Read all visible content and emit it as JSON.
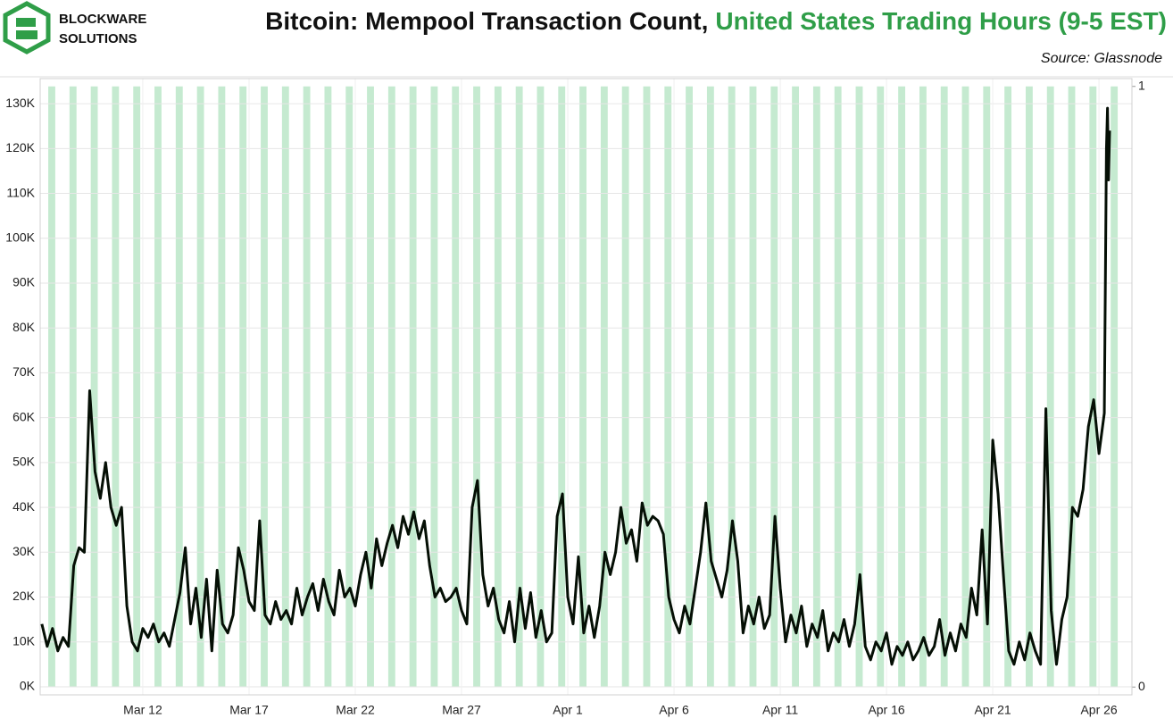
{
  "chart_data": {
    "type": "line",
    "logo_text": [
      "BLOCKWARE",
      "SOLUTIONS"
    ],
    "title": "Bitcoin: Mempool Transaction Count,",
    "title_highlight": "United States Trading Hours (9-5 EST)",
    "source": "Source: Glassnode",
    "xlim": [
      7.17,
      58.55
    ],
    "xticks": [
      {
        "value": 12,
        "label": "Mar 12"
      },
      {
        "value": 17,
        "label": "Mar 17"
      },
      {
        "value": 22,
        "label": "Mar 22"
      },
      {
        "value": 27,
        "label": "Mar 27"
      },
      {
        "value": 32,
        "label": "Apr 1"
      },
      {
        "value": 37,
        "label": "Apr 6"
      },
      {
        "value": 42,
        "label": "Apr 11"
      },
      {
        "value": 47,
        "label": "Apr 16"
      },
      {
        "value": 52,
        "label": "Apr 21"
      },
      {
        "value": 57,
        "label": "Apr 26"
      }
    ],
    "ylim": [
      -1800,
      135600
    ],
    "yticks": [
      {
        "value": 0,
        "label": "0K"
      },
      {
        "value": 10000,
        "label": "10K"
      },
      {
        "value": 20000,
        "label": "20K"
      },
      {
        "value": 30000,
        "label": "30K"
      },
      {
        "value": 40000,
        "label": "40K"
      },
      {
        "value": 50000,
        "label": "50K"
      },
      {
        "value": 60000,
        "label": "60K"
      },
      {
        "value": 70000,
        "label": "70K"
      },
      {
        "value": 80000,
        "label": "80K"
      },
      {
        "value": 90000,
        "label": "90K"
      },
      {
        "value": 100000,
        "label": "100K"
      },
      {
        "value": 110000,
        "label": "110K"
      },
      {
        "value": 120000,
        "label": "120K"
      },
      {
        "value": 130000,
        "label": "130K"
      }
    ],
    "y2lim": [
      -0.013,
      1.013
    ],
    "y2ticks": [
      0,
      1
    ],
    "grid": true,
    "bands": {
      "axis": "y2",
      "color": "#c5ead0",
      "starts": [
        7.55,
        8.55,
        9.55,
        10.55,
        11.55,
        12.55,
        13.55,
        14.55,
        15.55,
        16.55,
        17.55,
        18.55,
        19.55,
        20.55,
        21.55,
        22.55,
        23.55,
        24.55,
        25.55,
        26.55,
        27.55,
        28.55,
        29.55,
        30.55,
        31.55,
        32.55,
        33.55,
        34.55,
        35.55,
        36.55,
        37.55,
        38.55,
        39.55,
        40.55,
        41.55,
        42.55,
        43.55,
        44.55,
        45.55,
        46.55,
        47.55,
        48.55,
        49.55,
        50.55,
        51.55,
        52.55,
        53.55,
        54.55,
        55.55,
        56.55,
        57.55
      ],
      "ends": [
        7.88,
        8.88,
        9.88,
        10.88,
        11.88,
        12.88,
        13.88,
        14.88,
        15.88,
        16.88,
        17.88,
        18.88,
        19.88,
        20.88,
        21.88,
        22.88,
        23.88,
        24.88,
        25.88,
        26.88,
        27.88,
        28.88,
        29.88,
        30.88,
        31.88,
        32.88,
        33.88,
        34.88,
        35.88,
        36.88,
        37.88,
        38.88,
        39.88,
        40.88,
        41.88,
        42.88,
        43.88,
        44.88,
        45.88,
        46.88,
        47.88,
        48.88,
        49.88,
        50.88,
        51.88,
        52.88,
        53.88,
        54.88,
        55.88,
        56.88,
        57.88
      ],
      "values": [
        1,
        1,
        1,
        1,
        1,
        1,
        1,
        1,
        1,
        1,
        1,
        1,
        1,
        1,
        1,
        1,
        1,
        1,
        1,
        1,
        1,
        1,
        1,
        1,
        1,
        1,
        1,
        1,
        1,
        1,
        1,
        1,
        1,
        1,
        1,
        1,
        1,
        1,
        1,
        1,
        1,
        1,
        1,
        1,
        1,
        1,
        1,
        1,
        1,
        1,
        1
      ]
    },
    "x": [
      7.25,
      7.5,
      7.75,
      8,
      8.25,
      8.5,
      8.75,
      9,
      9.25,
      9.5,
      9.75,
      10,
      10.25,
      10.5,
      10.75,
      11,
      11.25,
      11.5,
      11.75,
      12,
      12.25,
      12.5,
      12.75,
      13,
      13.25,
      13.5,
      13.75,
      14,
      14.25,
      14.5,
      14.75,
      15,
      15.25,
      15.5,
      15.75,
      16,
      16.25,
      16.5,
      16.75,
      17,
      17.25,
      17.5,
      17.75,
      18,
      18.25,
      18.5,
      18.75,
      19,
      19.25,
      19.5,
      19.75,
      20,
      20.25,
      20.5,
      20.75,
      21,
      21.25,
      21.5,
      21.75,
      22,
      22.25,
      22.5,
      22.75,
      23,
      23.25,
      23.5,
      23.75,
      24,
      24.25,
      24.5,
      24.75,
      25,
      25.25,
      25.5,
      25.75,
      26,
      26.25,
      26.5,
      26.75,
      27,
      27.25,
      27.5,
      27.75,
      28,
      28.25,
      28.5,
      28.75,
      29,
      29.25,
      29.5,
      29.75,
      30,
      30.25,
      30.5,
      30.75,
      31,
      31.25,
      31.5,
      31.75,
      32,
      32.25,
      32.5,
      32.75,
      33,
      33.25,
      33.5,
      33.75,
      34,
      34.25,
      34.5,
      34.75,
      35,
      35.25,
      35.5,
      35.75,
      36,
      36.25,
      36.5,
      36.75,
      37,
      37.25,
      37.5,
      37.75,
      38,
      38.25,
      38.5,
      38.75,
      39,
      39.25,
      39.5,
      39.75,
      40,
      40.25,
      40.5,
      40.75,
      41,
      41.25,
      41.5,
      41.75,
      42,
      42.25,
      42.5,
      42.75,
      43,
      43.25,
      43.5,
      43.75,
      44,
      44.25,
      44.5,
      44.75,
      45,
      45.25,
      45.5,
      45.75,
      46,
      46.25,
      46.5,
      46.75,
      47,
      47.25,
      47.5,
      47.75,
      48,
      48.25,
      48.5,
      48.75,
      49,
      49.25,
      49.5,
      49.75,
      50,
      50.25,
      50.5,
      50.75,
      51,
      51.25,
      51.5,
      51.75,
      52,
      52.25,
      52.5,
      52.75,
      53,
      53.25,
      53.5,
      53.75,
      54,
      54.25,
      54.5,
      54.75,
      55,
      55.25,
      55.5,
      55.75,
      56,
      56.25,
      56.5,
      56.75,
      57,
      57.25,
      57.35,
      57.4,
      57.45,
      57.5
    ],
    "series": [
      {
        "color": "#050f05",
        "values": [
          14000,
          9000,
          13000,
          8000,
          11000,
          9000,
          27000,
          31000,
          30000,
          66000,
          48000,
          42000,
          50000,
          40000,
          36000,
          40000,
          18000,
          10000,
          8000,
          13000,
          11000,
          14000,
          10000,
          12000,
          9000,
          15000,
          21000,
          31000,
          14000,
          22000,
          11000,
          24000,
          8000,
          26000,
          14000,
          12000,
          16000,
          31000,
          26000,
          19000,
          17000,
          37000,
          16000,
          14000,
          19000,
          15000,
          17000,
          14000,
          22000,
          16000,
          20000,
          23000,
          17000,
          24000,
          19000,
          16000,
          26000,
          20000,
          22000,
          18000,
          25000,
          30000,
          22000,
          33000,
          27000,
          32000,
          36000,
          31000,
          38000,
          34000,
          39000,
          33000,
          37000,
          27000,
          20000,
          22000,
          19000,
          20000,
          22000,
          17000,
          14000,
          40000,
          46000,
          25000,
          18000,
          22000,
          15000,
          12000,
          19000,
          10000,
          22000,
          13000,
          21000,
          11000,
          17000,
          10000,
          12000,
          38000,
          43000,
          20000,
          14000,
          29000,
          12000,
          18000,
          11000,
          18000,
          30000,
          25000,
          30000,
          40000,
          32000,
          35000,
          28000,
          41000,
          36000,
          38000,
          37000,
          34000,
          20000,
          15000,
          12000,
          18000,
          14000,
          22000,
          30000,
          41000,
          28000,
          24000,
          20000,
          26000,
          37000,
          28000,
          12000,
          18000,
          14000,
          20000,
          13000,
          16000,
          38000,
          22000,
          10000,
          16000,
          12000,
          18000,
          9000,
          14000,
          11000,
          17000,
          8000,
          12000,
          10000,
          15000,
          9000,
          14000,
          25000,
          9000,
          6000,
          10000,
          8000,
          12000,
          5000,
          9000,
          7000,
          10000,
          6000,
          8000,
          11000,
          7000,
          9000,
          15000,
          7000,
          12000,
          8000,
          14000,
          11000,
          22000,
          16000,
          35000,
          14000,
          55000,
          43000,
          25000,
          8000,
          5000,
          10000,
          6000,
          12000,
          8000,
          5000,
          62000,
          17000,
          5000,
          15000,
          20000,
          40000,
          38000,
          44000,
          58000,
          64000,
          52000,
          61000,
          120000,
          129000,
          113000,
          124000
        ]
      }
    ]
  }
}
